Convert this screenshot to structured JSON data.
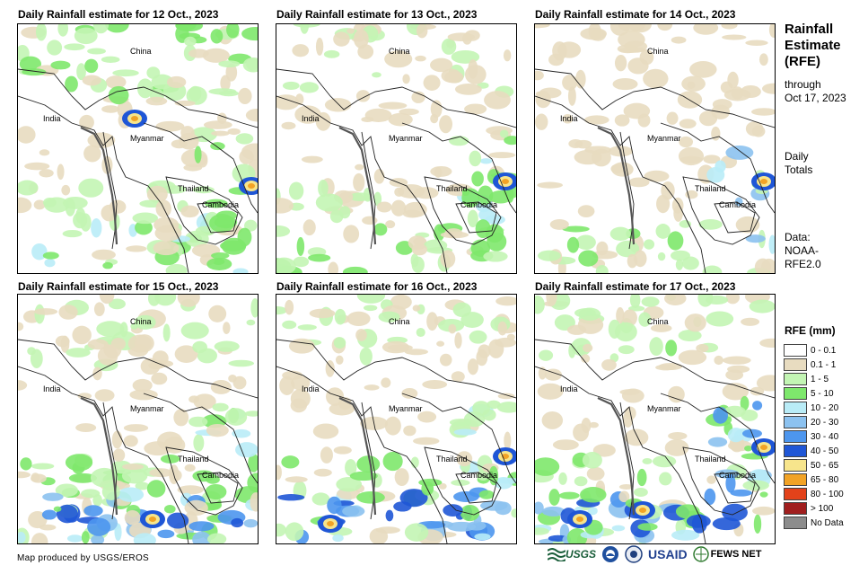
{
  "panels": [
    {
      "title": "Daily Rainfall estimate for 12 Oct., 2023"
    },
    {
      "title": "Daily Rainfall estimate for 13 Oct., 2023"
    },
    {
      "title": "Daily Rainfall estimate for 14 Oct., 2023"
    },
    {
      "title": "Daily Rainfall estimate for 15 Oct., 2023"
    },
    {
      "title": "Daily Rainfall estimate for 16 Oct., 2023"
    },
    {
      "title": "Daily Rainfall estimate for 17 Oct., 2023"
    }
  ],
  "map_labels": {
    "china": "China",
    "india": "India",
    "myanmar": "Myanmar",
    "thailand": "Thailand",
    "cambodia": "Cambodia"
  },
  "side": {
    "title_lines": [
      "Rainfall",
      "Estimate",
      "(RFE)"
    ],
    "through": "through",
    "date": "Oct 17, 2023",
    "daily": "Daily",
    "totals": "Totals",
    "data": "Data:",
    "source1": "NOAA-",
    "source2": "RFE2.0"
  },
  "legend": {
    "title": "RFE (mm)",
    "items": [
      {
        "label": "0 - 0.1",
        "color": "#ffffff"
      },
      {
        "label": "0.1 - 1",
        "color": "#e8dcc0"
      },
      {
        "label": "1 - 5",
        "color": "#c3f5b4"
      },
      {
        "label": "5 - 10",
        "color": "#7ee86c"
      },
      {
        "label": "10 - 20",
        "color": "#b9ecf7"
      },
      {
        "label": "20 - 30",
        "color": "#8cc2f0"
      },
      {
        "label": "30 - 40",
        "color": "#4d96ee"
      },
      {
        "label": "40 - 50",
        "color": "#1f56d6"
      },
      {
        "label": "50 - 65",
        "color": "#f7e58c"
      },
      {
        "label": "65 - 80",
        "color": "#f2a326"
      },
      {
        "label": "80 - 100",
        "color": "#e3421a"
      },
      {
        "label": "> 100",
        "color": "#a01e1e"
      },
      {
        "label": "No Data",
        "color": "#8c8c8c"
      }
    ]
  },
  "footer": "Map produced by USGS/EROS",
  "logos": {
    "usgs": "USGS",
    "usaid": "USAID",
    "fewsnet": "FEWS NET"
  }
}
